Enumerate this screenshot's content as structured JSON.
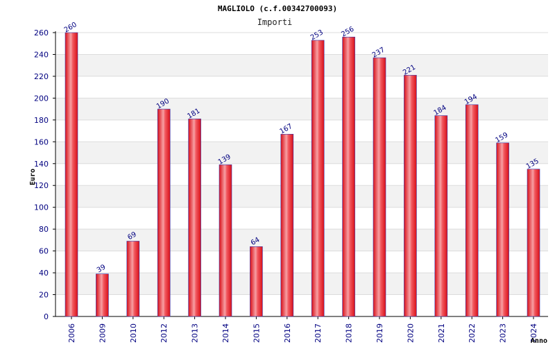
{
  "chart_data": {
    "type": "bar",
    "title": "MAGLIOLO (c.f.00342700093)",
    "subtitle": "Importi",
    "xlabel": "Anno",
    "ylabel": "Euro",
    "ylim": [
      0,
      260
    ],
    "yticks": [
      0,
      20,
      40,
      60,
      80,
      100,
      120,
      140,
      160,
      180,
      200,
      220,
      240,
      260
    ],
    "categories": [
      "2006",
      "2009",
      "2010",
      "2012",
      "2013",
      "2014",
      "2015",
      "2016",
      "2017",
      "2018",
      "2019",
      "2020",
      "2021",
      "2022",
      "2023",
      "2024"
    ],
    "values": [
      260,
      39,
      69,
      190,
      181,
      139,
      64,
      167,
      253,
      256,
      237,
      221,
      184,
      194,
      159,
      135
    ],
    "value_labels": [
      "260",
      "39",
      "69",
      "190",
      "181",
      "139",
      "64",
      "167",
      "253",
      "256",
      "237",
      "221",
      "184",
      "194",
      "159",
      "135"
    ],
    "grid": true,
    "colors": {
      "bar": "#e8111b",
      "bar_highlight": "#f7a0a4",
      "bar_edge": "#3a3ab0",
      "label": "#000080",
      "band": "#f2f2f2"
    }
  }
}
